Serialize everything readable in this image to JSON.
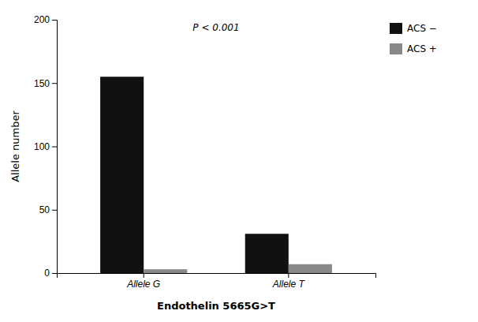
{
  "chart_data": {
    "type": "bar",
    "categories": [
      "Allele G",
      "Allele T"
    ],
    "series": [
      {
        "name": "ACS −",
        "color": "#111111",
        "values": [
          155,
          31
        ]
      },
      {
        "name": "ACS +",
        "color": "#888888",
        "values": [
          3,
          7
        ]
      }
    ],
    "xlabel": "Endothelin 5665G>T",
    "ylabel": "Allele number",
    "annotation": "P < 0.001",
    "ylim": [
      0,
      200
    ],
    "yticks": [
      0,
      50,
      100,
      150,
      200
    ],
    "grid": false,
    "legend": "right"
  }
}
